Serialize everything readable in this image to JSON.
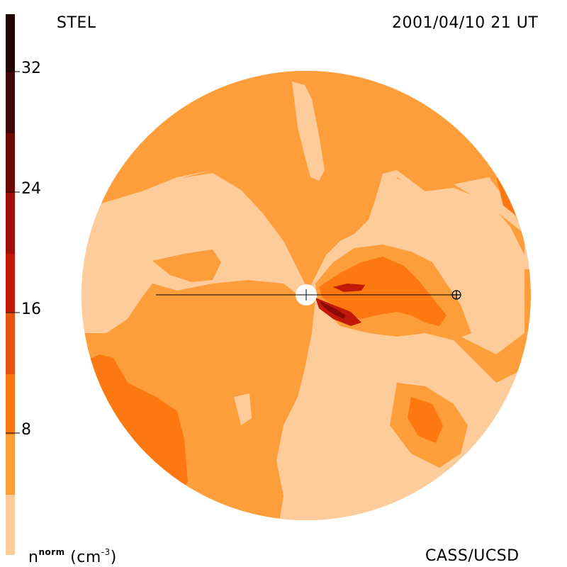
{
  "header": {
    "left_label": "STEL",
    "right_label": "2001/04/10 21 UT"
  },
  "footer": {
    "unit_label_main": "n",
    "unit_label_sup": "norm",
    "unit_label_rest": " (cm",
    "unit_label_exp": "-3",
    "unit_label_close": ")",
    "credit": "CASS/UCSD"
  },
  "colorbar": {
    "ticks": [
      "32",
      "24",
      "16",
      "8"
    ],
    "colors": [
      "#fdcc9a",
      "#fd9e3b",
      "#fd7810",
      "#e85410",
      "#c21a0a",
      "#8c0a06",
      "#5a0808",
      "#250808"
    ]
  },
  "palette": {
    "lightest": "#fdcc9a",
    "light": "#fd9e3b",
    "medium": "#fd7810",
    "dark": "#c21a0a",
    "darkest": "#8c0a06"
  },
  "markers": {
    "sun": "sun-disk",
    "earth": "earth-symbol"
  }
}
